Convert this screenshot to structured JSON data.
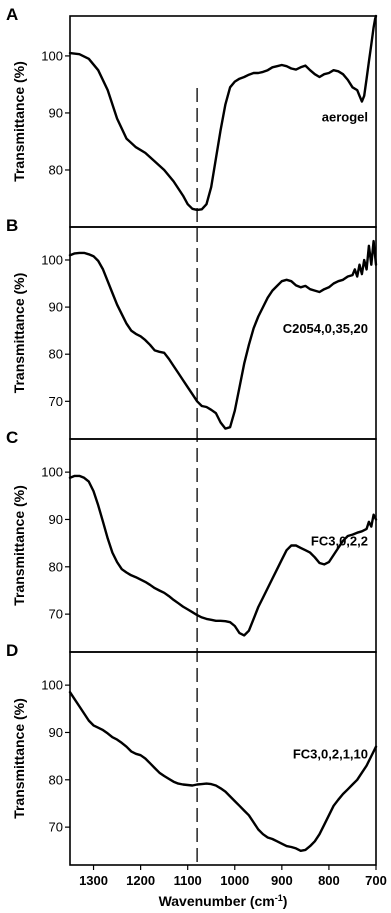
{
  "chart_data": {
    "type": "line",
    "xlabel": "Wavenumber (cm",
    "xlabel_sup": "-1",
    "xlabel_end": ")",
    "xlim": [
      1350,
      700
    ],
    "xticks": [
      1300,
      1200,
      1100,
      1000,
      900,
      800,
      700
    ],
    "reference_line_x": 1080,
    "panels": [
      {
        "letter": "A",
        "ylabel": "Transmittance (%)",
        "sample_label": "aerogel",
        "ylim": [
          70,
          107
        ],
        "yticks": [
          80,
          90,
          100
        ],
        "x": [
          1350,
          1330,
          1310,
          1290,
          1270,
          1250,
          1230,
          1210,
          1190,
          1170,
          1150,
          1130,
          1110,
          1100,
          1090,
          1080,
          1070,
          1060,
          1050,
          1040,
          1030,
          1020,
          1010,
          1000,
          990,
          980,
          970,
          960,
          950,
          940,
          930,
          920,
          910,
          900,
          890,
          880,
          870,
          860,
          850,
          840,
          830,
          820,
          810,
          800,
          790,
          780,
          770,
          760,
          750,
          740,
          735,
          730,
          725,
          720,
          715,
          710,
          705,
          702,
          700
        ],
        "y": [
          100.5,
          100.3,
          99.5,
          97.5,
          94,
          89,
          85.5,
          84,
          83,
          81.5,
          80,
          78,
          75.5,
          74,
          73.2,
          73,
          73.1,
          74,
          77,
          82,
          87,
          91.5,
          94.5,
          95.5,
          96,
          96.3,
          96.7,
          97,
          97,
          97.2,
          97.5,
          98,
          98.2,
          98.4,
          98.2,
          97.8,
          97.6,
          98,
          98.3,
          97.5,
          96.8,
          96.3,
          96.8,
          97,
          97.5,
          97.3,
          96.8,
          95.8,
          94.5,
          94,
          93,
          92,
          93,
          96,
          99,
          102,
          105,
          106.5,
          107
        ]
      },
      {
        "letter": "B",
        "ylabel": "Transmittance (%)",
        "sample_label": "C2054,0,35,20",
        "ylim": [
          62,
          107
        ],
        "yticks": [
          70,
          80,
          90,
          100
        ],
        "x": [
          1350,
          1340,
          1330,
          1320,
          1310,
          1300,
          1290,
          1280,
          1270,
          1260,
          1250,
          1240,
          1230,
          1220,
          1210,
          1200,
          1190,
          1180,
          1170,
          1160,
          1150,
          1140,
          1130,
          1120,
          1110,
          1100,
          1090,
          1080,
          1070,
          1060,
          1050,
          1040,
          1030,
          1020,
          1010,
          1000,
          990,
          980,
          970,
          960,
          950,
          940,
          930,
          920,
          910,
          900,
          890,
          880,
          870,
          860,
          850,
          840,
          830,
          820,
          810,
          800,
          790,
          780,
          770,
          760,
          750,
          745,
          740,
          735,
          730,
          725,
          720,
          715,
          710,
          705,
          700
        ],
        "y": [
          101,
          101.4,
          101.5,
          101.5,
          101.2,
          100.8,
          99.8,
          98,
          95.5,
          93,
          90.5,
          88.5,
          86.5,
          85,
          84.3,
          83.8,
          83,
          82,
          80.8,
          80.5,
          80.3,
          79,
          77.5,
          76,
          74.5,
          73,
          71.5,
          70,
          69,
          68.8,
          68.2,
          67.5,
          65.5,
          64.2,
          64.5,
          68,
          73,
          78,
          82,
          85.5,
          88,
          90,
          92,
          93.5,
          94.5,
          95.5,
          95.8,
          95.5,
          94.6,
          94.2,
          94.5,
          93.8,
          93.5,
          93.2,
          93.8,
          94.2,
          95,
          95.5,
          95.8,
          96.5,
          96.8,
          98,
          96.5,
          99,
          97,
          100,
          98,
          103,
          99,
          104,
          99
        ]
      },
      {
        "letter": "C",
        "ylabel": "Transmittance (%)",
        "sample_label": "FC3,0,2,2",
        "ylim": [
          62,
          107
        ],
        "yticks": [
          70,
          80,
          90,
          100
        ],
        "x": [
          1350,
          1340,
          1330,
          1320,
          1310,
          1300,
          1290,
          1280,
          1270,
          1260,
          1250,
          1240,
          1230,
          1220,
          1210,
          1200,
          1190,
          1180,
          1170,
          1160,
          1150,
          1140,
          1130,
          1120,
          1110,
          1100,
          1090,
          1080,
          1070,
          1060,
          1050,
          1040,
          1030,
          1020,
          1010,
          1000,
          990,
          980,
          970,
          960,
          950,
          940,
          930,
          920,
          910,
          900,
          890,
          880,
          870,
          860,
          850,
          840,
          830,
          820,
          810,
          800,
          790,
          780,
          770,
          760,
          750,
          740,
          730,
          720,
          715,
          710,
          705,
          700
        ],
        "y": [
          98.8,
          99.2,
          99.2,
          98.8,
          98,
          96,
          93,
          89.5,
          86,
          83,
          81,
          79.5,
          78.8,
          78.2,
          77.8,
          77.3,
          76.8,
          76.2,
          75.5,
          75,
          74.5,
          73.8,
          73,
          72.3,
          71.6,
          71,
          70.4,
          69.8,
          69.3,
          69,
          68.8,
          68.6,
          68.6,
          68.5,
          68.3,
          67.5,
          66,
          65.5,
          66.5,
          69,
          71.5,
          73.5,
          75.5,
          77.5,
          79.5,
          81.5,
          83.5,
          84.5,
          84.5,
          84,
          83.5,
          83,
          82,
          80.8,
          80.5,
          81,
          82.5,
          84,
          85.5,
          86.5,
          86.8,
          87.2,
          87.5,
          88,
          89.5,
          88.5,
          91,
          90
        ]
      },
      {
        "letter": "D",
        "ylabel": "Transmittance (%)",
        "sample_label": "FC3,0,2,1,10",
        "ylim": [
          62,
          107
        ],
        "yticks": [
          70,
          80,
          90,
          100
        ],
        "x": [
          1350,
          1340,
          1330,
          1320,
          1310,
          1300,
          1290,
          1280,
          1270,
          1260,
          1250,
          1240,
          1230,
          1220,
          1210,
          1200,
          1190,
          1180,
          1170,
          1160,
          1150,
          1140,
          1130,
          1120,
          1110,
          1100,
          1090,
          1080,
          1070,
          1060,
          1050,
          1040,
          1030,
          1020,
          1010,
          1000,
          990,
          980,
          970,
          960,
          950,
          940,
          930,
          920,
          910,
          900,
          890,
          880,
          870,
          860,
          850,
          840,
          830,
          820,
          810,
          800,
          790,
          780,
          770,
          760,
          750,
          740,
          730,
          720,
          710,
          700
        ],
        "y": [
          98.5,
          97,
          95.5,
          94,
          92.5,
          91.5,
          91,
          90.5,
          89.8,
          89,
          88.5,
          87.8,
          87,
          86,
          85.5,
          85.2,
          84.5,
          83.5,
          82.5,
          81.5,
          80.8,
          80.2,
          79.6,
          79.2,
          79,
          78.9,
          78.8,
          79,
          79.1,
          79.2,
          79.1,
          78.8,
          78.2,
          77.5,
          76.5,
          75.5,
          74.5,
          73.5,
          72.5,
          71,
          69.5,
          68.5,
          67.8,
          67.5,
          67,
          66.5,
          66,
          65.8,
          65.5,
          65,
          65.2,
          66,
          67,
          68.5,
          70.5,
          72.5,
          74.5,
          75.8,
          77,
          78,
          79,
          80,
          81.5,
          83,
          85,
          87
        ]
      }
    ]
  }
}
